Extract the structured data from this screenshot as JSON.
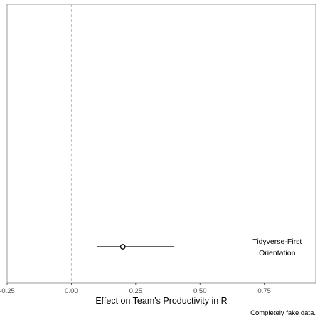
{
  "chart_data": {
    "type": "scatter",
    "title": "",
    "xlabel": "Effect on Team's Productivity in R",
    "ylabel": "",
    "xlim": [
      -0.25,
      0.95
    ],
    "x_ticks": [
      -0.25,
      0.0,
      0.25,
      0.5,
      0.75
    ],
    "x_tick_labels": [
      "-0.25",
      "0.00",
      "0.25",
      "0.50",
      "0.75"
    ],
    "reference_line": {
      "x": 0.0,
      "style": "dashed"
    },
    "grid": false,
    "points": [
      {
        "x": 0.2,
        "xmin": 0.1,
        "xmax": 0.4
      }
    ],
    "annotation": {
      "text_line1": "Tidyverse-First",
      "text_line2": "Orientation",
      "x": 0.8
    },
    "caption": "Completely fake data.",
    "colors": {
      "panel_border": "#7f7f7f",
      "ref_line": "#bdbdbd",
      "mark": "#000000"
    }
  }
}
